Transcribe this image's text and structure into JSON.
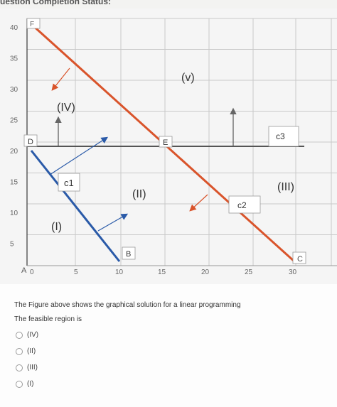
{
  "header": {
    "title": "uestion Completion Status:"
  },
  "figure": {
    "y_ticks": [
      "40",
      "35",
      "30",
      "25",
      "20",
      "15",
      "10",
      "5"
    ],
    "x_ticks": [
      "0",
      "5",
      "10",
      "15",
      "20",
      "25",
      "30"
    ],
    "point_labels": {
      "A": "A",
      "B": "B",
      "C": "C",
      "D": "D",
      "E": "E",
      "F": "F"
    },
    "region_labels": {
      "I": "(I)",
      "II": "(II)",
      "III": "(III)",
      "IV": "(IV)",
      "V": "(v)"
    },
    "line_labels": {
      "c1": "c1",
      "c2": "c2",
      "c3": "c3"
    },
    "colors": {
      "red_line": "#d9542b",
      "blue_line": "#2a5aa8",
      "grid": "#c9c9c9",
      "axis": "#3a3a3a"
    }
  },
  "question": {
    "line1": "The Figure above shows the graphical solution for a linear programming",
    "line2": "The feasible region is"
  },
  "options": [
    "(IV)",
    "(II)",
    "(III)",
    "(I)"
  ]
}
